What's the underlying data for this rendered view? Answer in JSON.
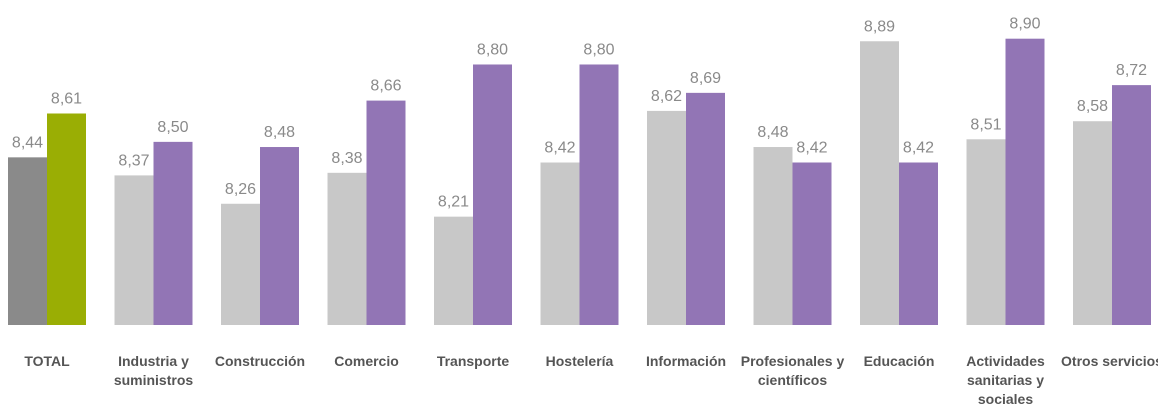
{
  "chart_data": {
    "type": "bar",
    "categories": [
      "TOTAL",
      "Industria y suministros",
      "Construcción",
      "Comercio",
      "Transporte",
      "Hostelería",
      "Información",
      "Profesionales y científicos",
      "Educación",
      "Actividades sanitarias y sociales",
      "Otros servicios"
    ],
    "series": [
      {
        "colors": [
          "#8a8a8a",
          "#c8c8c8",
          "#c8c8c8",
          "#c8c8c8",
          "#c8c8c8",
          "#c8c8c8",
          "#c8c8c8",
          "#c8c8c8",
          "#c8c8c8",
          "#c8c8c8",
          "#c8c8c8"
        ],
        "values": [
          8.44,
          8.37,
          8.26,
          8.38,
          8.21,
          8.42,
          8.62,
          8.48,
          8.89,
          8.51,
          8.58
        ],
        "value_labels": [
          "8,44",
          "8,37",
          "8,26",
          "8,38",
          "8,21",
          "8,42",
          "8,62",
          "8,48",
          "8,89",
          "8,51",
          "8,58"
        ]
      },
      {
        "colors": [
          "#9aae04",
          "#9275b5",
          "#9275b5",
          "#9275b5",
          "#9275b5",
          "#9275b5",
          "#9275b5",
          "#9275b5",
          "#9275b5",
          "#9275b5",
          "#9275b5"
        ],
        "values": [
          8.61,
          8.5,
          8.48,
          8.66,
          8.8,
          8.8,
          8.69,
          8.42,
          8.42,
          8.9,
          8.72
        ],
        "value_labels": [
          "8,61",
          "8,50",
          "8,48",
          "8,66",
          "8,80",
          "8,80",
          "8,69",
          "8,42",
          "8,42",
          "8,90",
          "8,72"
        ]
      }
    ],
    "ylim": [
      7.79,
      9.05
    ]
  }
}
